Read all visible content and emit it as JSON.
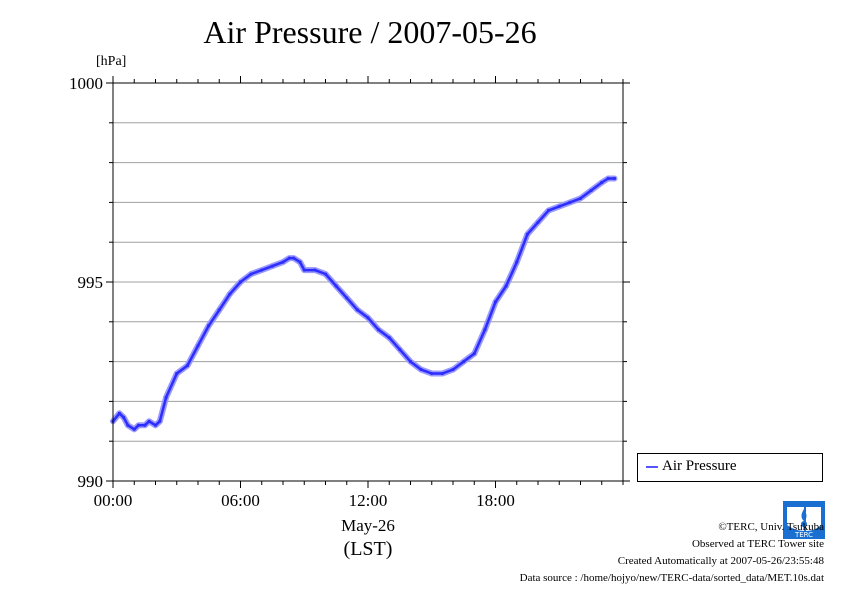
{
  "title": "Air Pressure / 2007-05-26",
  "unit": "[hPa]",
  "xlabel_date": "May-26",
  "xlabel_tz": "(LST)",
  "legend_label": "Air Pressure",
  "credits": {
    "copyright": "©TERC, Univ. Tsukuba",
    "observed": "Observed at TERC Tower site",
    "created": "Created Automatically at 2007-05-26/23:55:48",
    "source": "Data source : /home/hojyo/new/TERC-data/sorted_data/MET.10s.dat"
  },
  "logo_text": "TERC",
  "colors": {
    "series": "#2d2dff",
    "series_halo": "#9a9aff",
    "grid": "#a0a0a0"
  },
  "chart_data": {
    "type": "line",
    "title": "Air Pressure / 2007-05-26",
    "ylabel": "[hPa]",
    "ylim": [
      990,
      1000
    ],
    "yticks": [
      990,
      995,
      1000
    ],
    "ytick_labels": [
      "990",
      "995",
      "1000"
    ],
    "xlim": [
      0,
      24
    ],
    "xticks": [
      0,
      6,
      12,
      18
    ],
    "xtick_labels": [
      "00:00",
      "06:00",
      "12:00",
      "18:00"
    ],
    "grid": true,
    "legend": "bottom-right",
    "series": [
      {
        "name": "Air Pressure",
        "x": [
          0,
          0.3,
          0.5,
          0.7,
          1.0,
          1.2,
          1.5,
          1.7,
          2.0,
          2.2,
          2.5,
          3.0,
          3.5,
          4.0,
          4.5,
          5.0,
          5.5,
          6.0,
          6.5,
          7.0,
          7.5,
          8.0,
          8.3,
          8.5,
          8.8,
          9.0,
          9.5,
          10.0,
          10.5,
          11.0,
          11.5,
          12.0,
          12.5,
          13.0,
          13.5,
          14.0,
          14.5,
          15.0,
          15.5,
          16.0,
          16.5,
          17.0,
          17.5,
          18.0,
          18.5,
          19.0,
          19.5,
          20.0,
          20.5,
          21.0,
          21.5,
          22.0,
          22.5,
          23.0,
          23.3,
          23.6
        ],
        "y": [
          991.5,
          991.7,
          991.6,
          991.4,
          991.3,
          991.4,
          991.4,
          991.5,
          991.4,
          991.5,
          992.1,
          992.7,
          992.9,
          993.4,
          993.9,
          994.3,
          994.7,
          995.0,
          995.2,
          995.3,
          995.4,
          995.5,
          995.6,
          995.6,
          995.5,
          995.3,
          995.3,
          995.2,
          994.9,
          994.6,
          994.3,
          994.1,
          993.8,
          993.6,
          993.3,
          993.0,
          992.8,
          992.7,
          992.7,
          992.8,
          993.0,
          993.2,
          993.8,
          994.5,
          994.9,
          995.5,
          996.2,
          996.5,
          996.8,
          996.9,
          997.0,
          997.1,
          997.3,
          997.5,
          997.6,
          997.6
        ]
      }
    ]
  }
}
